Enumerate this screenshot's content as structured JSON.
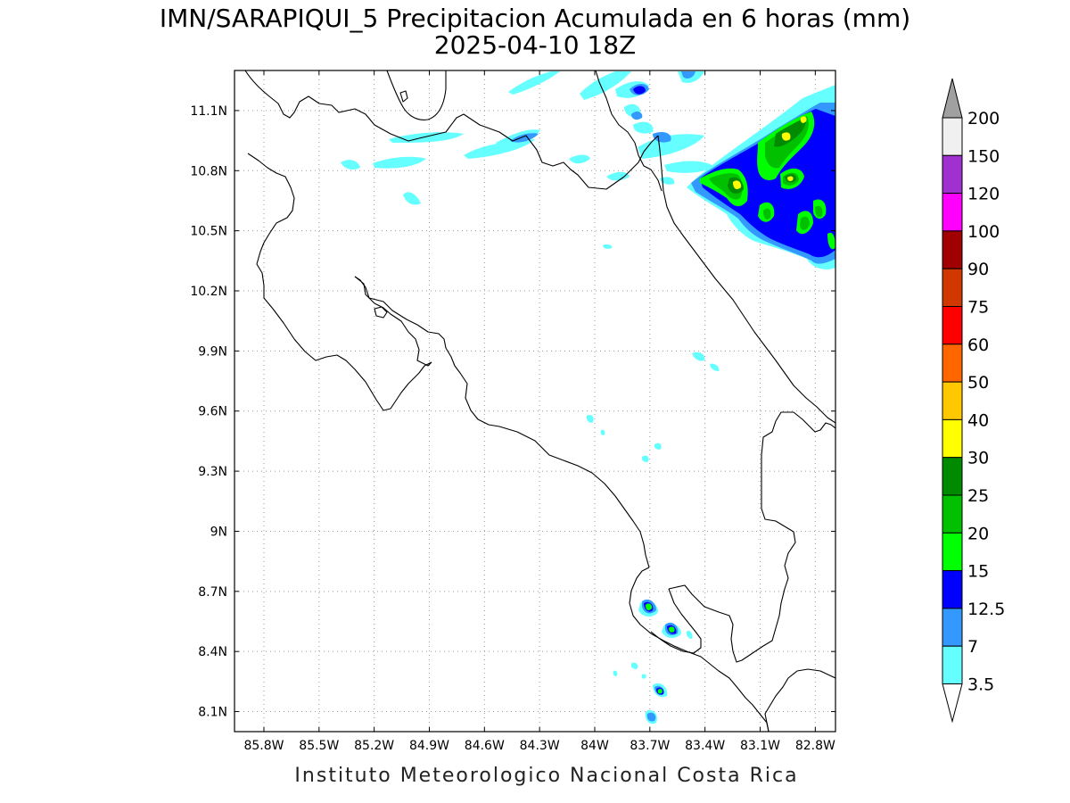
{
  "title": {
    "line1": "IMN/SARAPIQUI_5 Precipitacion Acumulada en 6 horas (mm)",
    "line2": "2025-04-10 18Z"
  },
  "credit": "Instituto Meteorologico Nacional Costa Rica",
  "map": {
    "lon_range": [
      -85.96,
      -82.69
    ],
    "lat_range": [
      8.0,
      11.3
    ],
    "x_ticks": [
      "85.8W",
      "85.5W",
      "85.2W",
      "84.9W",
      "84.6W",
      "84.3W",
      "84W",
      "83.7W",
      "83.4W",
      "83.1W",
      "82.8W"
    ],
    "y_ticks": [
      "11.1N",
      "10.8N",
      "10.5N",
      "10.2N",
      "9.9N",
      "9.6N",
      "9.3N",
      "9N",
      "8.7N",
      "8.4N",
      "8.1N"
    ]
  },
  "colorbar": {
    "levels": [
      "200",
      "150",
      "120",
      "100",
      "90",
      "75",
      "60",
      "50",
      "40",
      "30",
      "25",
      "20",
      "15",
      "12.5",
      "7",
      "3.5"
    ],
    "colors": [
      "#a0a0a0",
      "#f0f0f0",
      "#a030d0",
      "#ff00ff",
      "#a00000",
      "#d03800",
      "#ff0000",
      "#ff6600",
      "#ffc800",
      "#ffff00",
      "#008a00",
      "#00c000",
      "#00ff00",
      "#0000ff",
      "#3399ff",
      "#66ffff",
      "#ffffff"
    ]
  },
  "palette": {
    "c3_5": "#66ffff",
    "c7": "#3399ff",
    "c12_5": "#0000ff",
    "c15": "#00ff00",
    "c20": "#00c000",
    "c25": "#008a00",
    "c30": "#ffff00"
  }
}
